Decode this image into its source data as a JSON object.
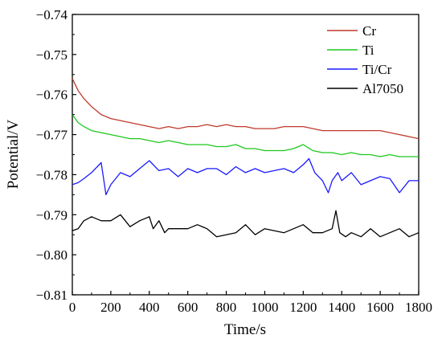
{
  "chart_data": {
    "type": "line",
    "xlabel": "Time/s",
    "ylabel": "Potential/V",
    "xlim": [
      0,
      1800
    ],
    "ylim": [
      -0.81,
      -0.74
    ],
    "xticks": [
      0,
      200,
      400,
      600,
      800,
      1000,
      1200,
      1400,
      1600,
      1800
    ],
    "xtick_labels": [
      "0",
      "200",
      "400",
      "600",
      "800",
      "1000",
      "1200",
      "1400",
      "1600",
      "1800"
    ],
    "yticks": [
      -0.74,
      -0.75,
      -0.76,
      -0.77,
      -0.78,
      -0.79,
      -0.8,
      -0.81
    ],
    "ytick_labels": [
      "−0.74",
      "−0.75",
      "−0.76",
      "−0.77",
      "−0.78",
      "−0.79",
      "−0.80",
      "−0.81"
    ],
    "grid": false,
    "legend_position": "top-right",
    "series": [
      {
        "name": "Cr",
        "color": "#c0392b",
        "x": [
          0,
          30,
          60,
          100,
          150,
          200,
          250,
          300,
          350,
          400,
          450,
          500,
          550,
          600,
          650,
          700,
          750,
          800,
          850,
          900,
          950,
          1000,
          1050,
          1100,
          1150,
          1200,
          1250,
          1300,
          1350,
          1400,
          1450,
          1500,
          1550,
          1600,
          1650,
          1700,
          1750,
          1800
        ],
        "y": [
          -0.756,
          -0.759,
          -0.761,
          -0.763,
          -0.765,
          -0.766,
          -0.7665,
          -0.767,
          -0.7675,
          -0.768,
          -0.7685,
          -0.768,
          -0.7685,
          -0.768,
          -0.768,
          -0.7675,
          -0.768,
          -0.7675,
          -0.768,
          -0.768,
          -0.7685,
          -0.7685,
          -0.7685,
          -0.768,
          -0.768,
          -0.768,
          -0.7685,
          -0.769,
          -0.769,
          -0.769,
          -0.769,
          -0.769,
          -0.769,
          -0.769,
          -0.7695,
          -0.77,
          -0.7705,
          -0.771
        ]
      },
      {
        "name": "Ti",
        "color": "#1ec81e",
        "x": [
          0,
          30,
          60,
          100,
          150,
          200,
          250,
          300,
          350,
          400,
          450,
          500,
          550,
          600,
          650,
          700,
          750,
          800,
          850,
          900,
          950,
          1000,
          1050,
          1100,
          1150,
          1200,
          1250,
          1300,
          1350,
          1400,
          1450,
          1500,
          1550,
          1600,
          1650,
          1700,
          1750,
          1800
        ],
        "y": [
          -0.765,
          -0.767,
          -0.768,
          -0.769,
          -0.7695,
          -0.77,
          -0.7705,
          -0.771,
          -0.771,
          -0.7715,
          -0.772,
          -0.7715,
          -0.772,
          -0.7725,
          -0.7725,
          -0.7725,
          -0.773,
          -0.773,
          -0.7725,
          -0.7735,
          -0.7735,
          -0.774,
          -0.774,
          -0.774,
          -0.7735,
          -0.7725,
          -0.774,
          -0.7745,
          -0.7745,
          -0.775,
          -0.7745,
          -0.775,
          -0.775,
          -0.7755,
          -0.775,
          -0.7755,
          -0.7755,
          -0.7755
        ]
      },
      {
        "name": "Ti/Cr",
        "color": "#1a1aff",
        "x": [
          0,
          30,
          60,
          100,
          150,
          175,
          200,
          250,
          300,
          350,
          400,
          450,
          500,
          550,
          600,
          650,
          700,
          750,
          800,
          850,
          900,
          950,
          1000,
          1050,
          1100,
          1150,
          1200,
          1230,
          1260,
          1300,
          1330,
          1350,
          1380,
          1400,
          1450,
          1500,
          1550,
          1600,
          1650,
          1700,
          1750,
          1800
        ],
        "y": [
          -0.7825,
          -0.782,
          -0.781,
          -0.7795,
          -0.777,
          -0.785,
          -0.7825,
          -0.7795,
          -0.7805,
          -0.7785,
          -0.7765,
          -0.779,
          -0.7785,
          -0.7805,
          -0.7785,
          -0.7795,
          -0.7785,
          -0.7785,
          -0.78,
          -0.778,
          -0.7795,
          -0.7785,
          -0.7795,
          -0.779,
          -0.7785,
          -0.7795,
          -0.7775,
          -0.776,
          -0.7795,
          -0.7815,
          -0.7845,
          -0.7815,
          -0.7795,
          -0.7815,
          -0.7795,
          -0.7825,
          -0.7815,
          -0.7805,
          -0.781,
          -0.7845,
          -0.7815,
          -0.7815
        ]
      },
      {
        "name": "Al7050",
        "color": "#000000",
        "x": [
          0,
          30,
          60,
          100,
          150,
          200,
          250,
          300,
          350,
          400,
          420,
          450,
          480,
          500,
          550,
          600,
          650,
          700,
          750,
          800,
          850,
          900,
          950,
          1000,
          1050,
          1100,
          1150,
          1200,
          1250,
          1300,
          1350,
          1370,
          1390,
          1420,
          1450,
          1500,
          1550,
          1600,
          1650,
          1700,
          1750,
          1800
        ],
        "y": [
          -0.794,
          -0.7935,
          -0.7915,
          -0.7905,
          -0.7915,
          -0.7915,
          -0.79,
          -0.793,
          -0.7915,
          -0.7905,
          -0.7935,
          -0.7915,
          -0.7945,
          -0.7935,
          -0.7935,
          -0.7935,
          -0.7925,
          -0.7935,
          -0.7955,
          -0.795,
          -0.7945,
          -0.7925,
          -0.795,
          -0.7935,
          -0.794,
          -0.7945,
          -0.7935,
          -0.7925,
          -0.7945,
          -0.7945,
          -0.7935,
          -0.789,
          -0.7945,
          -0.7955,
          -0.7945,
          -0.7955,
          -0.7935,
          -0.7955,
          -0.7945,
          -0.7935,
          -0.7955,
          -0.7945
        ]
      }
    ]
  }
}
